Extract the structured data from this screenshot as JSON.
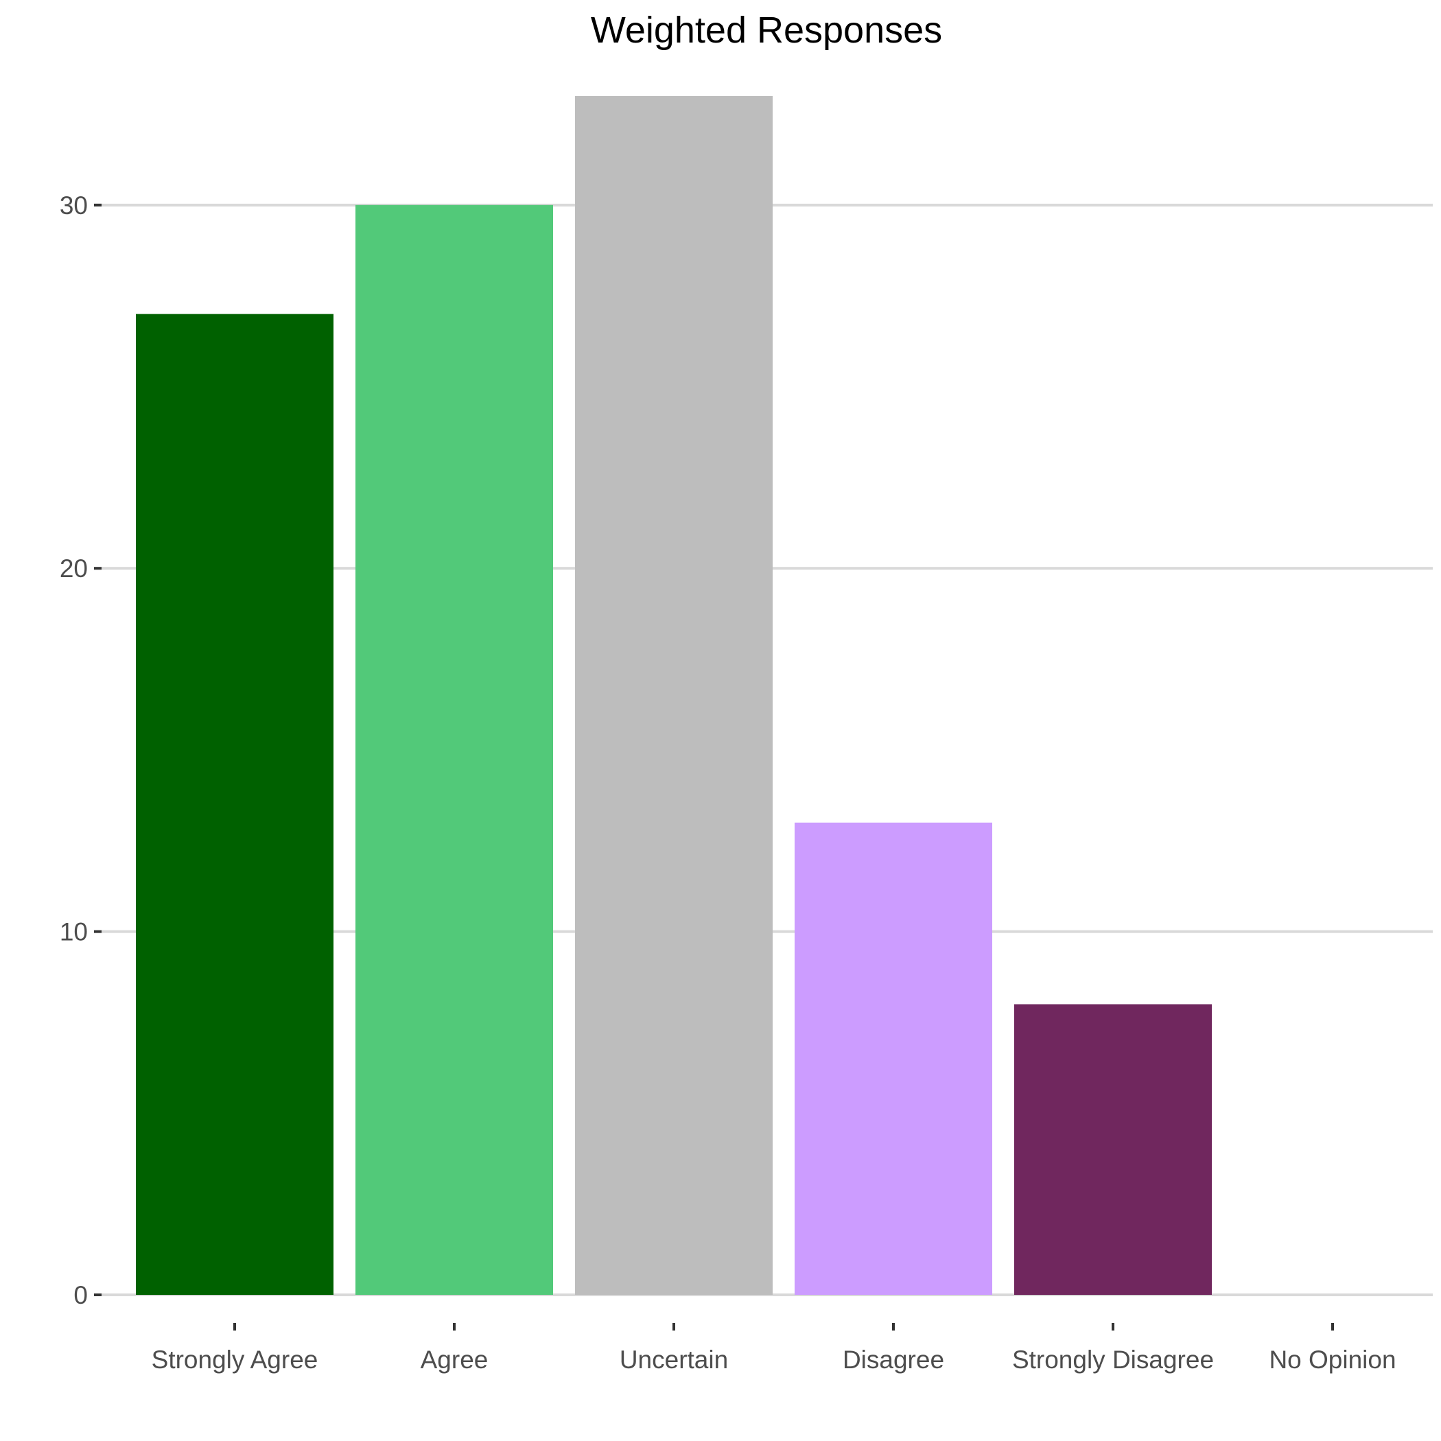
{
  "chart_data": {
    "type": "bar",
    "title": "Weighted Responses",
    "xlabel": "",
    "ylabel": "",
    "categories": [
      "Strongly Agree",
      "Agree",
      "Uncertain",
      "Disagree",
      "Strongly Disagree",
      "No Opinion"
    ],
    "values": [
      27,
      30,
      33,
      13,
      8,
      0
    ],
    "colors": [
      "#006100",
      "#52c979",
      "#bdbdbd",
      "#cc9cff",
      "#70275e",
      "#ffffff"
    ],
    "ylim": [
      0,
      33
    ],
    "yticks": [
      0,
      10,
      20,
      30
    ],
    "grid": true,
    "gridline_color": "#d9d9d9",
    "legend": "none"
  }
}
